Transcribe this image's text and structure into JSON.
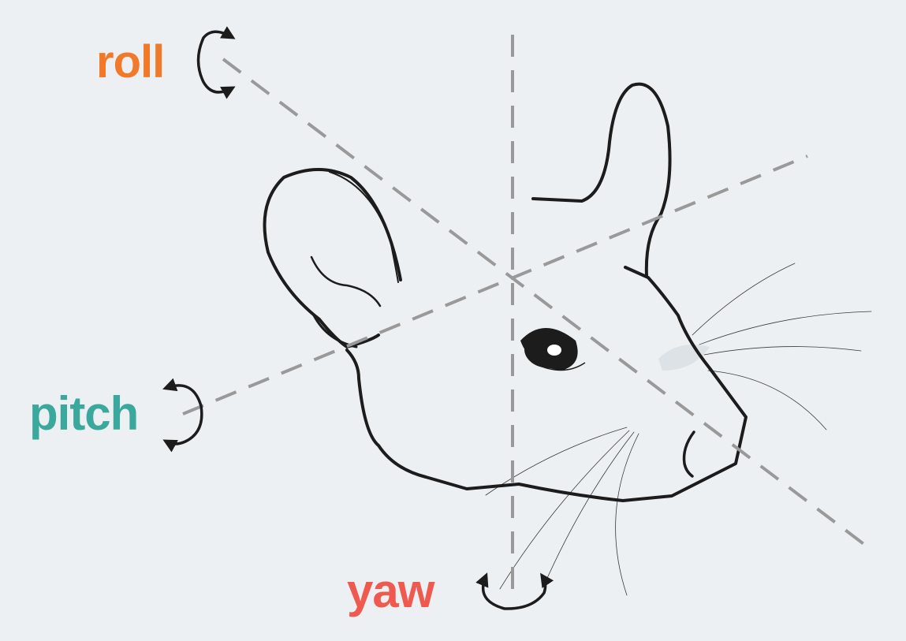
{
  "labels": {
    "roll": "roll",
    "pitch": "pitch",
    "yaw": "yaw"
  },
  "colors": {
    "background": "#edf0f2",
    "roll": "#f07a2a",
    "pitch": "#3aa89d",
    "yaw": "#ee5a4f",
    "axis": "#999999",
    "outline": "#1c1c1c"
  },
  "icons": {
    "roll": "rotation-arrow-icon",
    "pitch": "rotation-arrow-icon",
    "yaw": "rotation-arrow-icon"
  }
}
